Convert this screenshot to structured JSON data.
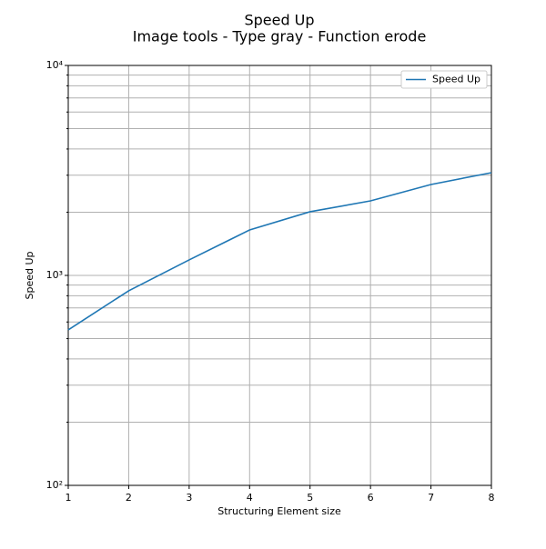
{
  "chart_data": {
    "type": "line",
    "title": "Speed Up",
    "subtitle": "Image tools - Type gray - Function erode",
    "xlabel": "Structuring Element size",
    "ylabel": "Speed Up",
    "x": [
      1,
      2,
      3,
      4,
      5,
      6,
      7,
      8
    ],
    "series": [
      {
        "name": "Speed Up",
        "color": "#1f77b4",
        "values": [
          550,
          845,
          1185,
          1646,
          2010,
          2265,
          2710,
          3085
        ]
      }
    ],
    "xlim": [
      1,
      8
    ],
    "xticks": [
      1,
      2,
      3,
      4,
      5,
      6,
      7,
      8
    ],
    "ylim": [
      100,
      10000
    ],
    "yticks": [
      {
        "value": 100,
        "label": "10²"
      },
      {
        "value": 1000,
        "label": "10³"
      },
      {
        "value": 10000,
        "label": "10⁴"
      }
    ],
    "yminorticks": [
      200,
      300,
      400,
      500,
      600,
      700,
      800,
      900,
      2000,
      3000,
      4000,
      5000,
      6000,
      7000,
      8000,
      9000
    ],
    "ylog": true,
    "grid": true,
    "legend": "upper right"
  }
}
